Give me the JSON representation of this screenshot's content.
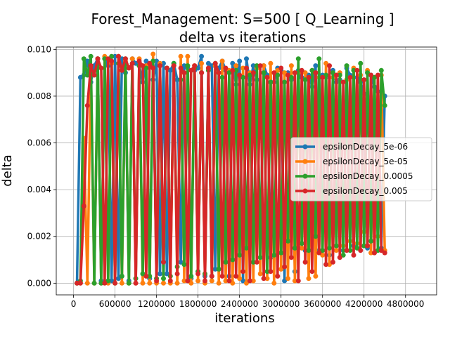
{
  "chart_data": {
    "type": "line",
    "title_line1": "Forest_Management: S=500 [ Q_Learning ]",
    "title_line2": "delta vs iterations",
    "xlabel": "iterations",
    "ylabel": "delta",
    "xlim": [
      -250000,
      5250000
    ],
    "ylim": [
      -0.0005,
      0.0101
    ],
    "xticks": [
      0,
      600000,
      1200000,
      1800000,
      2400000,
      3000000,
      3600000,
      4200000,
      4800000
    ],
    "xtick_labels": [
      "0",
      "600000",
      "1200000",
      "1800000",
      "2400000",
      "3000000",
      "3600000",
      "4200000",
      "4800000"
    ],
    "yticks": [
      0.0,
      0.002,
      0.004,
      0.006,
      0.008,
      0.01
    ],
    "ytick_labels": [
      "0.000",
      "0.002",
      "0.004",
      "0.006",
      "0.008",
      "0.010"
    ],
    "grid": true,
    "legend_position": "center-right",
    "x_start": 50000,
    "x_step": 50000,
    "series": [
      {
        "name": "epsilonDecay_5e-06",
        "color": "#1f77b4",
        "values": [
          0.0,
          0.0088,
          0.0089,
          0.0095,
          0.0086,
          0.0093,
          0.0096,
          0.0001,
          0.0096,
          0.0093,
          0.0001,
          0.0097,
          0.0002,
          0.0096,
          0.009,
          0.0001,
          0.0096,
          0.0094,
          0.0093,
          0.0086,
          0.0095,
          0.0002,
          0.0087,
          0.0095,
          0.0004,
          0.0094,
          0.0004,
          0.0091,
          0.0094,
          0.0087,
          0.0009,
          0.0093,
          0.0092,
          0.0002,
          0.0091,
          0.0092,
          0.0097,
          0.0003,
          0.0094,
          0.0093,
          0.0006,
          0.0092,
          0.0095,
          0.0091,
          0.0003,
          0.0094,
          0.0085,
          0.0095,
          0.0001,
          0.0096,
          0.0085,
          0.0093,
          0.0087,
          0.0011,
          0.0093,
          0.0089,
          0.0011,
          0.0086,
          0.0092,
          0.0091,
          0.0001,
          0.009,
          0.0087,
          0.0005,
          0.0091,
          0.0088,
          0.0014,
          0.0089,
          0.0084,
          0.0093,
          0.0014,
          0.0089,
          0.0088,
          0.0012,
          0.0091,
          0.0086,
          0.0087,
          0.0014,
          0.0092,
          0.0089,
          0.0016,
          0.0088,
          0.0086,
          0.0081,
          0.0015,
          0.0089,
          0.0084,
          0.0082,
          0.0015,
          0.008
        ]
      },
      {
        "name": "epsilonDecay_5e-05",
        "color": "#ff7f0e",
        "values": [
          0.0,
          0.0,
          0.0062,
          0.0,
          0.0093,
          0.0,
          0.0096,
          0.0,
          0.0097,
          0.0,
          0.0094,
          0.0,
          0.0097,
          0.0,
          0.0095,
          0.0,
          0.0096,
          0.0,
          0.0096,
          0.0,
          0.0093,
          0.0,
          0.0098,
          0.0,
          0.0094,
          0.0,
          0.0092,
          0.0,
          0.0093,
          0.0,
          0.0097,
          0.0001,
          0.0097,
          0.0,
          0.0093,
          0.0001,
          0.0094,
          0.0,
          0.0092,
          0.0001,
          0.0093,
          0.0,
          0.0095,
          0.0001,
          0.0091,
          0.0,
          0.0093,
          0.0002,
          0.0092,
          0.0,
          0.009,
          0.0001,
          0.0092,
          0.0004,
          0.0093,
          0.0002,
          0.0094,
          0.0,
          0.0091,
          0.0006,
          0.009,
          0.0002,
          0.0093,
          0.0001,
          0.009,
          0.0015,
          0.009,
          0.0002,
          0.0091,
          0.0003,
          0.0088,
          0.0012,
          0.0094,
          0.0008,
          0.0088,
          0.0014,
          0.009,
          0.0016,
          0.0087,
          0.0018,
          0.0092,
          0.0017,
          0.0089,
          0.0022,
          0.0091,
          0.0013,
          0.0088,
          0.002,
          0.0089,
          0.0014
        ]
      },
      {
        "name": "epsilonDecay_0.0005",
        "color": "#2ca02c",
        "values": [
          0.0,
          0.0001,
          0.0096,
          0.0089,
          0.0097,
          0.0,
          0.0096,
          0.0,
          0.0096,
          0.0001,
          0.0097,
          0.0,
          0.0094,
          0.0003,
          0.0096,
          0.0,
          0.0094,
          0.0002,
          0.0093,
          0.0004,
          0.0092,
          0.0003,
          0.0095,
          0.0002,
          0.0093,
          0.0002,
          0.0092,
          0.0003,
          0.0094,
          0.0007,
          0.0087,
          0.0008,
          0.0093,
          0.0003,
          0.0092,
          0.0005,
          0.009,
          0.0004,
          0.0091,
          0.0003,
          0.0094,
          0.0006,
          0.0088,
          0.0009,
          0.009,
          0.001,
          0.0091,
          0.0012,
          0.0088,
          0.0015,
          0.0089,
          0.0009,
          0.0093,
          0.0011,
          0.009,
          0.0005,
          0.0086,
          0.0012,
          0.0089,
          0.0013,
          0.0086,
          0.0018,
          0.0088,
          0.0015,
          0.0096,
          0.0017,
          0.0087,
          0.0014,
          0.0091,
          0.002,
          0.0096,
          0.0014,
          0.0089,
          0.0015,
          0.009,
          0.0016,
          0.0089,
          0.0012,
          0.0093,
          0.0014,
          0.0091,
          0.0015,
          0.0094,
          0.0016,
          0.009,
          0.0018,
          0.0088,
          0.0014,
          0.0091,
          0.0076
        ]
      },
      {
        "name": "epsilonDecay_0.005",
        "color": "#d62728",
        "values": [
          0.0,
          0.0,
          0.0033,
          0.0076,
          0.0093,
          0.0089,
          0.0096,
          0.0092,
          0.0,
          0.0096,
          0.0095,
          0.0,
          0.0097,
          0.0091,
          0.0096,
          0.0092,
          0.0094,
          0.0,
          0.0095,
          0.0093,
          0.0003,
          0.0094,
          0.0092,
          0.0001,
          0.0093,
          0.0009,
          0.0092,
          0.0001,
          0.0093,
          0.0004,
          0.0092,
          0.009,
          0.0001,
          0.0091,
          0.0093,
          0.0004,
          0.009,
          0.0001,
          0.0092,
          0.0003,
          0.0094,
          0.009,
          0.0003,
          0.0092,
          0.0001,
          0.0091,
          0.0003,
          0.0089,
          0.0005,
          0.0092,
          0.0001,
          0.009,
          0.0009,
          0.0093,
          0.0002,
          0.0088,
          0.0005,
          0.009,
          0.0003,
          0.0092,
          0.0007,
          0.0089,
          0.0011,
          0.009,
          0.0001,
          0.0091,
          0.0009,
          0.0088,
          0.0005,
          0.009,
          0.0013,
          0.0088,
          0.0008,
          0.0093,
          0.0009,
          0.0089,
          0.0011,
          0.0086,
          0.0014,
          0.0088,
          0.0012,
          0.0091,
          0.0014,
          0.0087,
          0.0016,
          0.0089,
          0.0013,
          0.0089,
          0.0014,
          0.0013
        ]
      }
    ]
  }
}
